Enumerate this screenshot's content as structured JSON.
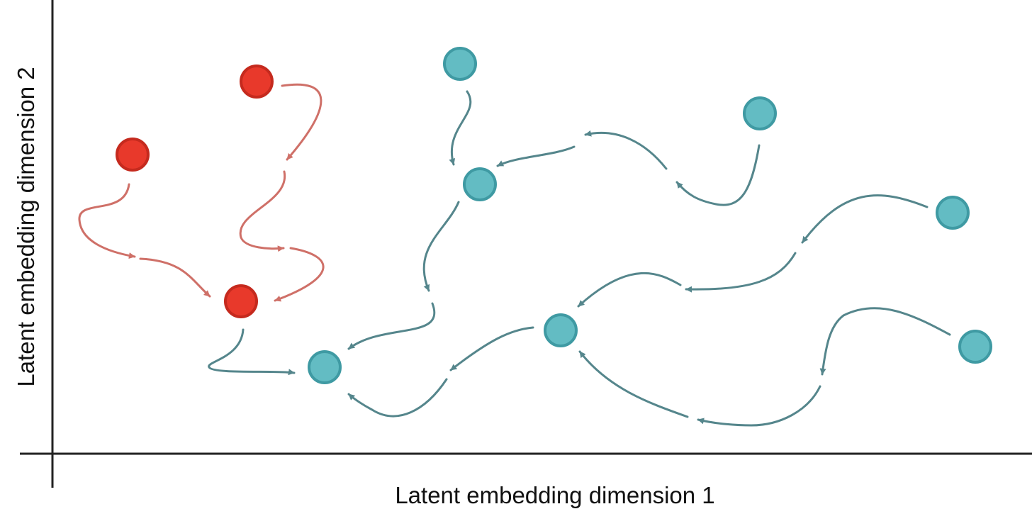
{
  "axes": {
    "x_label": "Latent embedding dimension 1",
    "y_label": "Latent embedding dimension 2"
  },
  "colors": {
    "red_node_fill": "#e8392b",
    "red_node_stroke": "#c52a1e",
    "red_arrow": "#cf7068",
    "teal_node_fill": "#63bcc3",
    "teal_node_stroke": "#3f9aa3",
    "teal_arrow": "#55868c",
    "axis": "#222222"
  },
  "nodes": [
    {
      "id": "r1",
      "group": "red"
    },
    {
      "id": "r2",
      "group": "red"
    },
    {
      "id": "r3",
      "group": "red"
    },
    {
      "id": "t1",
      "group": "teal"
    },
    {
      "id": "t2",
      "group": "teal"
    },
    {
      "id": "t3",
      "group": "teal"
    },
    {
      "id": "t4",
      "group": "teal"
    },
    {
      "id": "t5",
      "group": "teal"
    },
    {
      "id": "t6",
      "group": "teal"
    },
    {
      "id": "t7",
      "group": "teal"
    }
  ]
}
